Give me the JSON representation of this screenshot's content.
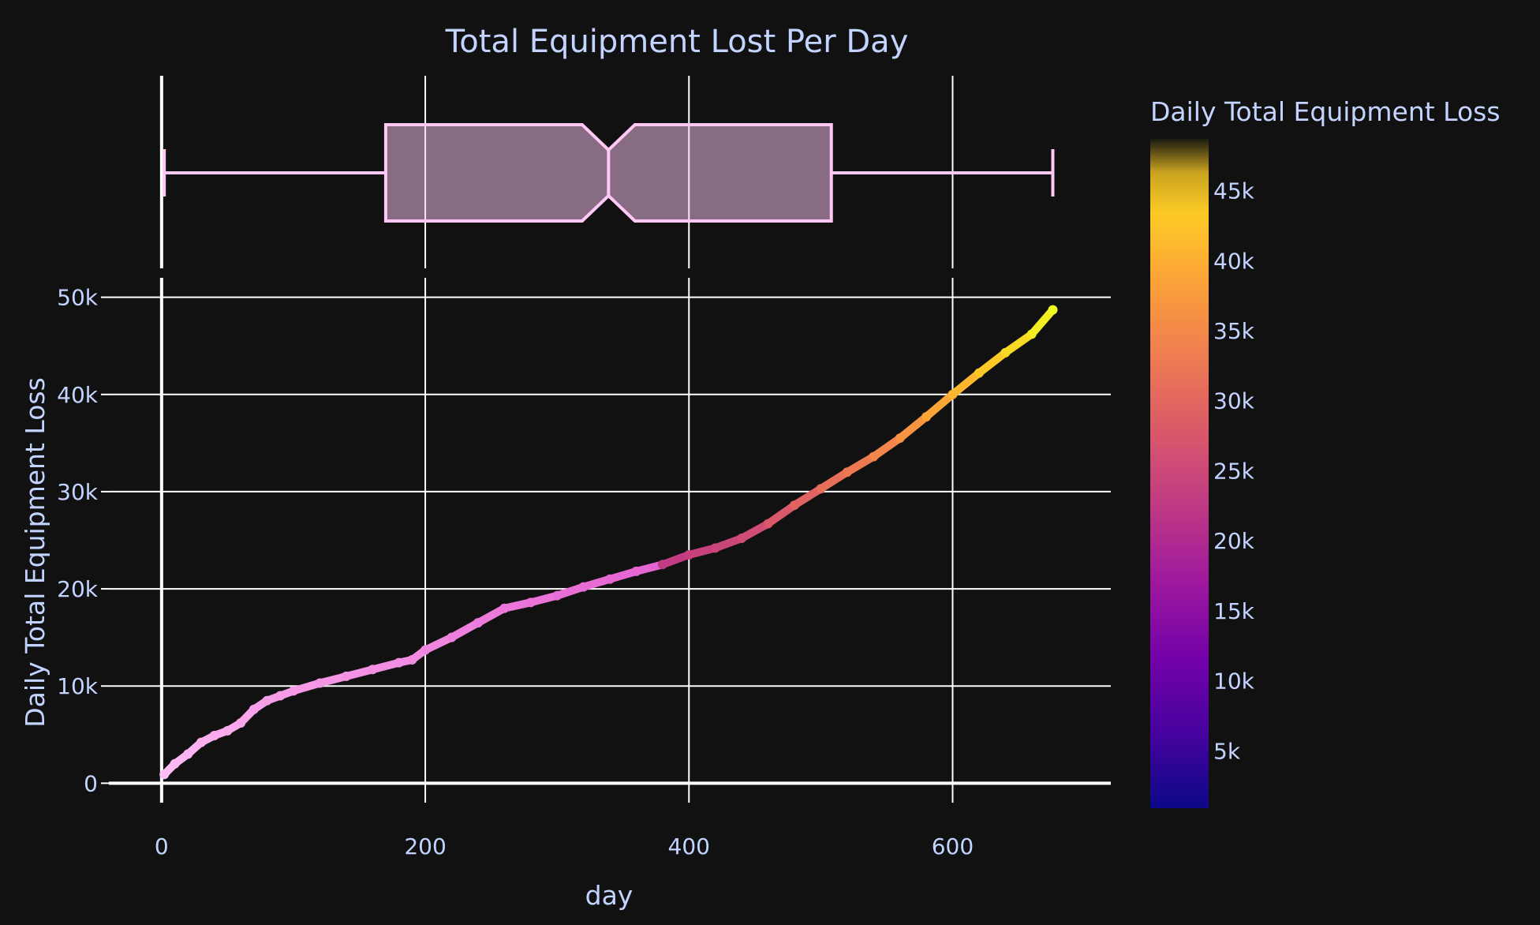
{
  "chart_data": {
    "type": "scatter",
    "title": "Total Equipment Lost Per Day",
    "xlabel": "day",
    "ylabel": "Daily Total Equipment Loss",
    "xlim": [
      -40,
      720
    ],
    "ylim": [
      -2000,
      52000
    ],
    "x_ticks": [
      0,
      200,
      400,
      600
    ],
    "y_ticks": [
      0,
      10000,
      20000,
      30000,
      40000,
      50000
    ],
    "x_tick_labels": [
      "0",
      "200",
      "400",
      "600"
    ],
    "y_tick_labels": [
      "0",
      "10k",
      "20k",
      "30k",
      "40k",
      "50k"
    ],
    "grid": true,
    "colorscale": "plasma",
    "colorbar": {
      "title": "Daily Total Equipment Loss",
      "min": 900,
      "max": 48700,
      "ticks": [
        5000,
        10000,
        15000,
        20000,
        25000,
        30000,
        35000,
        40000,
        45000
      ],
      "tick_labels": [
        "5k",
        "10k",
        "15k",
        "20k",
        "25k",
        "30k",
        "35k",
        "40k",
        "45k"
      ]
    },
    "marginal_box_x": {
      "lowerfence": 2,
      "q1": 170,
      "median": 339,
      "q3": 508,
      "upperfence": 676,
      "notch_low": 319,
      "notch_high": 359,
      "color": "#ffc8f5"
    },
    "series": [
      {
        "x": [
          2,
          10,
          20,
          30,
          40,
          50,
          60,
          70,
          80,
          90,
          100,
          120,
          140,
          160,
          180,
          190,
          200,
          220,
          240,
          260,
          280,
          300,
          320,
          340,
          360,
          380,
          400,
          420,
          440,
          460,
          480,
          500,
          520,
          540,
          560,
          580,
          600,
          620,
          640,
          660,
          676
        ],
        "y": [
          900,
          2000,
          3000,
          4200,
          4900,
          5400,
          6200,
          7600,
          8500,
          9000,
          9500,
          10300,
          11000,
          11700,
          12400,
          12700,
          13700,
          15000,
          16500,
          18000,
          18600,
          19300,
          20200,
          21000,
          21800,
          22500,
          23500,
          24200,
          25200,
          26700,
          28600,
          30300,
          32000,
          33600,
          35500,
          37700,
          40000,
          42200,
          44300,
          46200,
          48700
        ]
      }
    ]
  }
}
